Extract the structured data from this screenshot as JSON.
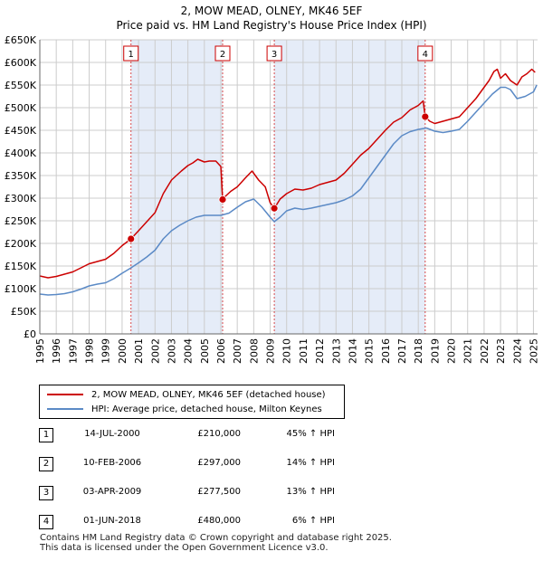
{
  "colors": {
    "property": "#cc0000",
    "hpi": "#5b8ac6",
    "shade": "#dce6f5",
    "marker_line": "#cc0000"
  },
  "title": {
    "line1": "2, MOW MEAD, OLNEY, MK46 5EF",
    "line2": "Price paid vs. HM Land Registry's House Price Index (HPI)"
  },
  "chart_data": {
    "type": "line",
    "title": "2, MOW MEAD, OLNEY, MK46 5EF",
    "subtitle": "Price paid vs. HM Land Registry's House Price Index (HPI)",
    "xlabel": "",
    "ylabel": "",
    "xlim": [
      1995.0,
      2025.25
    ],
    "ylim": [
      0,
      650000
    ],
    "grid": true,
    "y_ticks": [
      0,
      50000,
      100000,
      150000,
      200000,
      250000,
      300000,
      350000,
      400000,
      450000,
      500000,
      550000,
      600000,
      650000
    ],
    "y_tick_labels": [
      "£0",
      "£50K",
      "£100K",
      "£150K",
      "£200K",
      "£250K",
      "£300K",
      "£350K",
      "£400K",
      "£450K",
      "£500K",
      "£550K",
      "£600K",
      "£650K"
    ],
    "x_ticks": [
      1995,
      1996,
      1997,
      1998,
      1999,
      2000,
      2001,
      2002,
      2003,
      2004,
      2005,
      2006,
      2007,
      2008,
      2009,
      2010,
      2011,
      2012,
      2013,
      2014,
      2015,
      2016,
      2017,
      2018,
      2019,
      2020,
      2021,
      2022,
      2023,
      2024,
      2025
    ],
    "x_tick_labels": [
      "1995",
      "1996",
      "1997",
      "1998",
      "1999",
      "2000",
      "2001",
      "2002",
      "2003",
      "2004",
      "2005",
      "2006",
      "2007",
      "2008",
      "2009",
      "2010",
      "2011",
      "2012",
      "2013",
      "2014",
      "2015",
      "2016",
      "2017",
      "2018",
      "2019",
      "2020",
      "2021",
      "2022",
      "2023",
      "2024",
      "2025"
    ],
    "shaded_periods": [
      [
        2000.54,
        2006.11
      ],
      [
        2009.25,
        2018.42
      ]
    ],
    "series": [
      {
        "name": "2, MOW MEAD, OLNEY, MK46 5EF (detached house)",
        "color": "#cc0000",
        "x": [
          1995.0,
          1995.5,
          1996.0,
          1996.5,
          1997.0,
          1997.5,
          1998.0,
          1998.5,
          1999.0,
          1999.5,
          2000.0,
          2000.54,
          2001.0,
          2001.5,
          2002.0,
          2002.5,
          2003.0,
          2003.3,
          2003.6,
          2004.0,
          2004.3,
          2004.6,
          2005.0,
          2005.3,
          2005.7,
          2006.0,
          2006.11,
          2006.3,
          2006.6,
          2007.0,
          2007.5,
          2007.9,
          2008.3,
          2008.7,
          2009.0,
          2009.25,
          2009.6,
          2010.0,
          2010.5,
          2011.0,
          2011.5,
          2012.0,
          2012.5,
          2013.0,
          2013.5,
          2014.0,
          2014.5,
          2015.0,
          2015.5,
          2016.0,
          2016.5,
          2017.0,
          2017.5,
          2018.0,
          2018.3,
          2018.42,
          2018.7,
          2019.0,
          2019.5,
          2020.0,
          2020.5,
          2021.0,
          2021.5,
          2022.0,
          2022.3,
          2022.6,
          2022.8,
          2023.0,
          2023.3,
          2023.6,
          2024.0,
          2024.3,
          2024.6,
          2024.9,
          2025.1
        ],
        "values": [
          128000,
          124000,
          127000,
          132000,
          137000,
          146000,
          155000,
          160000,
          165000,
          178000,
          195000,
          210000,
          228000,
          248000,
          268000,
          310000,
          340000,
          350000,
          360000,
          372000,
          378000,
          386000,
          380000,
          382000,
          382000,
          370000,
          297000,
          305000,
          315000,
          325000,
          345000,
          360000,
          340000,
          325000,
          290000,
          277500,
          298000,
          310000,
          320000,
          318000,
          322000,
          330000,
          335000,
          340000,
          355000,
          375000,
          395000,
          410000,
          430000,
          450000,
          468000,
          478000,
          495000,
          505000,
          515000,
          480000,
          470000,
          465000,
          470000,
          475000,
          480000,
          500000,
          520000,
          545000,
          560000,
          580000,
          585000,
          565000,
          575000,
          560000,
          550000,
          568000,
          575000,
          585000,
          578000
        ]
      },
      {
        "name": "HPI: Average price, detached house, Milton Keynes",
        "color": "#5b8ac6",
        "x": [
          1995.0,
          1995.5,
          1996.0,
          1996.5,
          1997.0,
          1997.5,
          1998.0,
          1998.5,
          1999.0,
          1999.5,
          2000.0,
          2000.5,
          2001.0,
          2001.5,
          2002.0,
          2002.5,
          2003.0,
          2003.5,
          2004.0,
          2004.5,
          2005.0,
          2005.5,
          2006.0,
          2006.5,
          2007.0,
          2007.5,
          2008.0,
          2008.5,
          2009.0,
          2009.25,
          2009.6,
          2010.0,
          2010.5,
          2011.0,
          2011.5,
          2012.0,
          2012.5,
          2013.0,
          2013.5,
          2014.0,
          2014.5,
          2015.0,
          2015.5,
          2016.0,
          2016.5,
          2017.0,
          2017.5,
          2018.0,
          2018.5,
          2019.0,
          2019.5,
          2020.0,
          2020.5,
          2021.0,
          2021.5,
          2022.0,
          2022.5,
          2023.0,
          2023.3,
          2023.6,
          2024.0,
          2024.5,
          2025.0,
          2025.2
        ],
        "values": [
          88000,
          86000,
          87000,
          89000,
          93000,
          99000,
          106000,
          110000,
          113000,
          122000,
          134000,
          145000,
          157000,
          170000,
          185000,
          210000,
          228000,
          240000,
          250000,
          258000,
          262000,
          262000,
          262000,
          267000,
          280000,
          292000,
          298000,
          280000,
          258000,
          248000,
          258000,
          272000,
          278000,
          275000,
          278000,
          282000,
          286000,
          290000,
          296000,
          305000,
          320000,
          345000,
          370000,
          395000,
          420000,
          438000,
          447000,
          452000,
          455000,
          448000,
          445000,
          448000,
          452000,
          470000,
          490000,
          510000,
          530000,
          545000,
          545000,
          540000,
          520000,
          525000,
          535000,
          550000
        ]
      }
    ],
    "sales": [
      {
        "label": "1",
        "x": 2000.54,
        "value": 210000
      },
      {
        "label": "2",
        "x": 2006.11,
        "value": 297000
      },
      {
        "label": "3",
        "x": 2009.25,
        "value": 277500
      },
      {
        "label": "4",
        "x": 2018.42,
        "value": 480000
      }
    ]
  },
  "legend": {
    "items": [
      {
        "label": "2, MOW MEAD, OLNEY, MK46 5EF (detached house)",
        "color": "#cc0000"
      },
      {
        "label": "HPI: Average price, detached house, Milton Keynes",
        "color": "#5b8ac6"
      }
    ]
  },
  "transactions": [
    {
      "num": "1",
      "date": "14-JUL-2000",
      "price": "£210,000",
      "hpi": "45% ↑ HPI"
    },
    {
      "num": "2",
      "date": "10-FEB-2006",
      "price": "£297,000",
      "hpi": "14% ↑ HPI"
    },
    {
      "num": "3",
      "date": "03-APR-2009",
      "price": "£277,500",
      "hpi": "13% ↑ HPI"
    },
    {
      "num": "4",
      "date": "01-JUN-2018",
      "price": "£480,000",
      "hpi": "6% ↑ HPI"
    }
  ],
  "footer": {
    "line1": "Contains HM Land Registry data © Crown copyright and database right 2025.",
    "line2": "This data is licensed under the Open Government Licence v3.0."
  }
}
